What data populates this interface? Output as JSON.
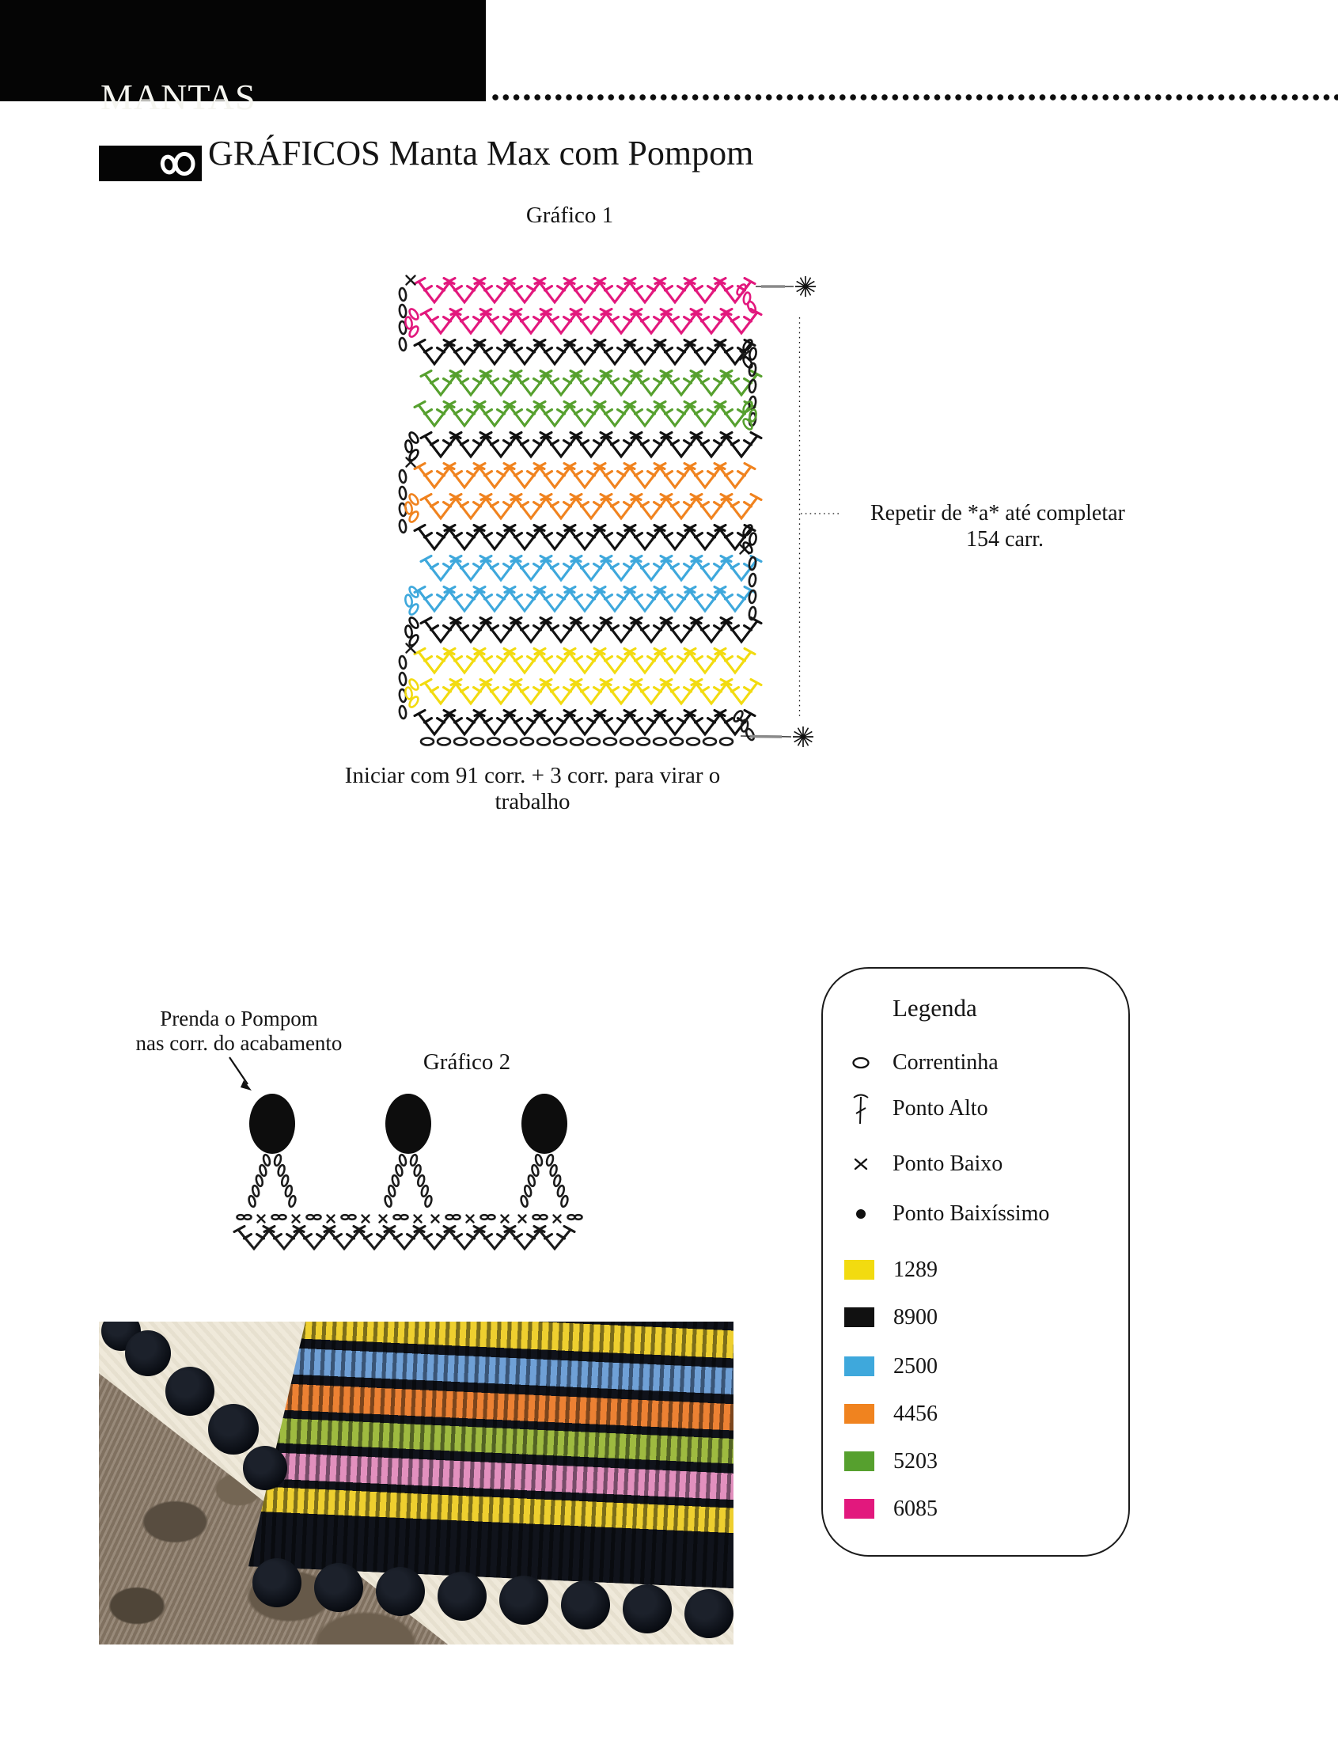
{
  "page": {
    "section": "MANTAS",
    "title": "GRÁFICOS Manta Max com Pompom"
  },
  "chart1": {
    "label": "Gráfico 1",
    "repeat_note": [
      "Repetir de *a* até completar",
      "154 carr."
    ],
    "caption": "Iniciar com 91 corr. + 3 corr. para virar o trabalho"
  },
  "chart2": {
    "label": "Gráfico 2",
    "note": [
      "Prenda o Pompom",
      "nas corr. do acabamento"
    ]
  },
  "legend": {
    "title": "Legenda",
    "stitches": [
      {
        "icon": "chain-symbol",
        "label": "Correntinha"
      },
      {
        "icon": "treble-symbol",
        "label": "Ponto Alto"
      },
      {
        "icon": "single-crochet-symbol",
        "label": "Ponto Baixo"
      },
      {
        "icon": "slip-stitch-symbol",
        "label": "Ponto Baixíssimo"
      }
    ],
    "yarns": [
      {
        "code": "1289",
        "hex": "#F2DB10"
      },
      {
        "code": "8900",
        "hex": "#111111"
      },
      {
        "code": "2500",
        "hex": "#3EA8DC"
      },
      {
        "code": "4456",
        "hex": "#F0831F"
      },
      {
        "code": "5203",
        "hex": "#56A02E"
      },
      {
        "code": "6085",
        "hex": "#E2187D"
      }
    ]
  },
  "chart_data": {
    "type": "crochet-diagram",
    "charts": [
      {
        "name": "Gráfico 1",
        "stitch_pattern": "fileiras de pontos altos em V",
        "v_stitches_per_row": 11,
        "rows_top_to_bottom": [
          "6085",
          "6085",
          "8900",
          "5203",
          "5203",
          "8900",
          "4456",
          "4456",
          "8900",
          "2500",
          "2500",
          "8900",
          "1289",
          "1289",
          "8900"
        ],
        "foundation_chain": "91 corr. + 3 corr.",
        "repeat_marks": "de *a* até completar 154 carr.",
        "foundation_ovals_drawn": 19
      },
      {
        "name": "Gráfico 2",
        "pompom_count": 3,
        "elements": [
          "pompons presos por correntinhas",
          "fileira de pontos baixos e correntinhas",
          "fileira de pontos altos em V"
        ]
      }
    ]
  }
}
